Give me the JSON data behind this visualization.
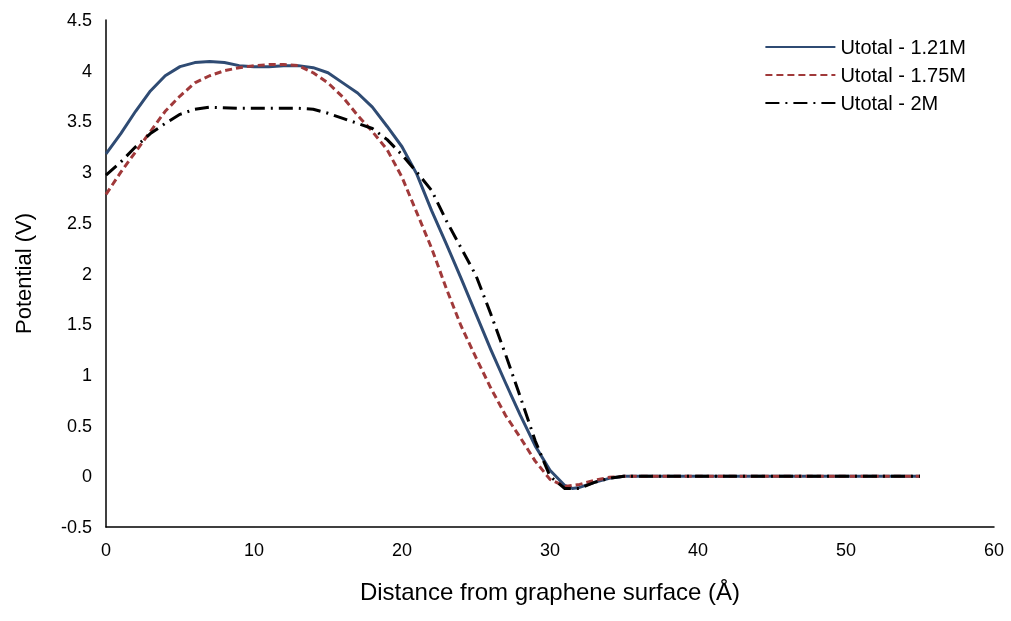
{
  "chart_data": {
    "type": "line",
    "xlabel": "Distance from graphene surface (Å)",
    "ylabel": "Potential (V)",
    "xlim": [
      0,
      60
    ],
    "xticks": [
      0,
      10,
      20,
      30,
      40,
      50,
      60
    ],
    "ylim": [
      -0.5,
      4.5
    ],
    "yticks": [
      -0.5,
      0,
      0.5,
      1,
      1.5,
      2,
      2.5,
      3,
      3.5,
      4,
      4.5
    ],
    "grid": false,
    "legend": "top right",
    "marker": "none",
    "series": [
      {
        "name": "Utotal - 1.21M",
        "color": "#2f4b73",
        "line_style": "solid",
        "x": [
          0,
          1,
          2,
          3,
          4,
          5,
          6,
          7,
          8,
          9,
          10,
          11,
          12,
          13,
          14,
          15,
          16,
          17,
          18,
          19,
          20,
          21,
          22,
          23,
          24,
          25,
          26,
          27,
          28,
          29,
          30,
          31,
          31.5,
          32,
          33,
          34,
          35,
          40,
          45,
          50,
          55
        ],
        "values": [
          3.18,
          3.38,
          3.6,
          3.8,
          3.95,
          4.04,
          4.08,
          4.09,
          4.08,
          4.05,
          4.04,
          4.04,
          4.05,
          4.05,
          4.03,
          3.98,
          3.88,
          3.78,
          3.64,
          3.45,
          3.25,
          2.98,
          2.62,
          2.29,
          1.95,
          1.6,
          1.25,
          0.92,
          0.6,
          0.3,
          0.06,
          -0.09,
          -0.12,
          -0.11,
          -0.06,
          -0.02,
          0,
          0,
          0,
          0,
          0
        ]
      },
      {
        "name": "Utotal - 1.75M",
        "color": "#a0393a",
        "line_style": "dashed",
        "x": [
          0,
          1,
          2,
          3,
          4,
          5,
          6,
          7,
          8,
          9,
          10,
          11,
          12,
          13,
          14,
          15,
          16,
          17,
          18,
          19,
          20,
          21,
          22,
          23,
          24,
          25,
          26,
          27,
          28,
          29,
          30,
          31,
          32,
          33,
          34,
          35,
          40,
          45,
          50,
          55
        ],
        "values": [
          2.78,
          3.0,
          3.2,
          3.4,
          3.6,
          3.75,
          3.88,
          3.95,
          4.0,
          4.03,
          4.05,
          4.06,
          4.06,
          4.05,
          3.98,
          3.88,
          3.74,
          3.56,
          3.4,
          3.22,
          2.95,
          2.6,
          2.25,
          1.85,
          1.48,
          1.17,
          0.87,
          0.6,
          0.38,
          0.15,
          -0.03,
          -0.1,
          -0.08,
          -0.04,
          -0.01,
          0,
          0,
          0,
          0,
          0
        ]
      },
      {
        "name": "Utotal - 2M",
        "color": "#000000",
        "line_style": "dashdot",
        "x": [
          0,
          1,
          2,
          3,
          4,
          5,
          6,
          7,
          9,
          11,
          13,
          14,
          15,
          16,
          17,
          18,
          19,
          20,
          21,
          22,
          23,
          24,
          25,
          26,
          27,
          28,
          29,
          30,
          31,
          32,
          33,
          34,
          35,
          40,
          45,
          50,
          55
        ],
        "values": [
          2.97,
          3.1,
          3.25,
          3.38,
          3.48,
          3.57,
          3.62,
          3.64,
          3.63,
          3.63,
          3.63,
          3.62,
          3.58,
          3.53,
          3.48,
          3.43,
          3.32,
          3.17,
          3.0,
          2.82,
          2.52,
          2.25,
          1.98,
          1.6,
          1.2,
          0.78,
          0.35,
          0.0,
          -0.12,
          -0.12,
          -0.06,
          -0.02,
          0,
          0,
          0,
          0,
          0
        ]
      }
    ]
  }
}
